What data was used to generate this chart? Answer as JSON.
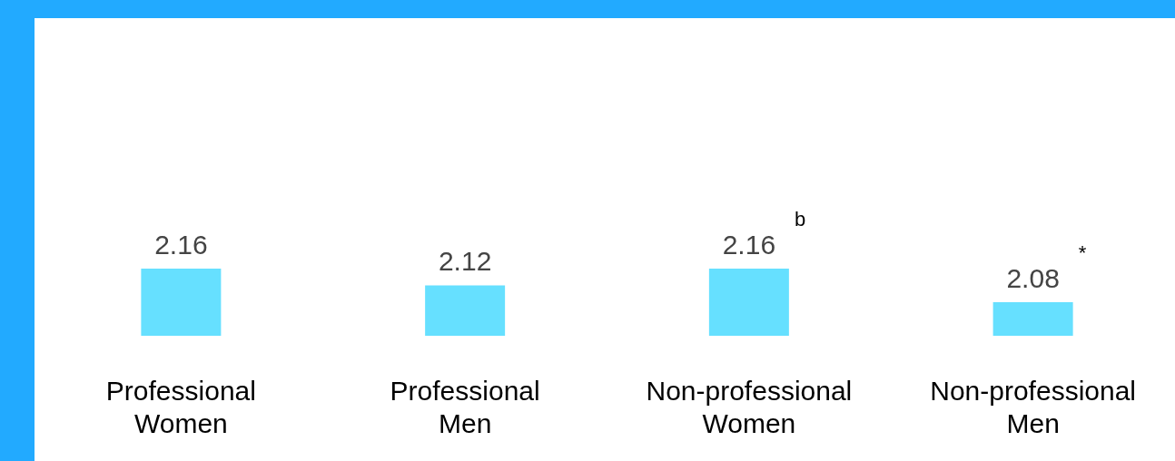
{
  "chart_data": {
    "type": "bar",
    "categories": [
      "Professional\nWomen",
      "Professional\nMen",
      "Non-professional\nWomen",
      "Non-professional\nMen"
    ],
    "values": [
      2.16,
      2.12,
      2.16,
      2.08
    ],
    "color": "#66e0ff",
    "ylim": [
      2.0,
      2.16
    ],
    "data_labels": true,
    "annotations": [
      "b",
      "*"
    ]
  }
}
